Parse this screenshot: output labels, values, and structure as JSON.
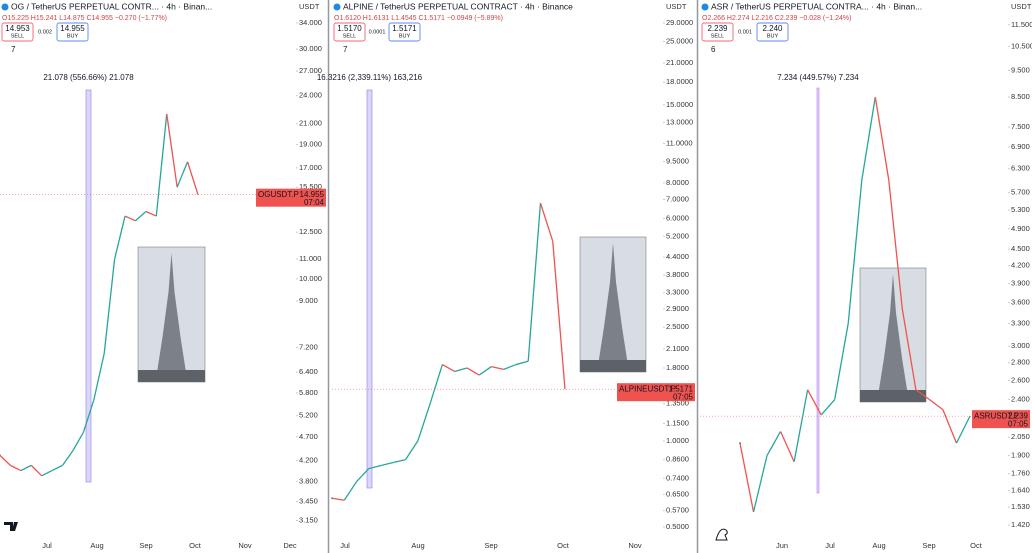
{
  "panels": [
    {
      "symbol_line": "OG / TetherUS PERPETUAL CONTR... · 4h · Binan...",
      "ohlc": "O15.225 H15.241 L14.875 C14.955 −0.270 (−1.77%)",
      "sell_price": "14.953",
      "sell_label": "SELL",
      "spread": "0.002",
      "buy_price": "14.955",
      "buy_label": "BUY",
      "indicators": "7",
      "axis_unit": "USDT",
      "measure": "21.078 (556.66%) 21.078",
      "tag_symbol": "OGUSDT.P",
      "tag_price": "14.955",
      "tag_time": "07:04",
      "log_scale": true,
      "ylim": [
        2.87,
        34.8
      ],
      "yticks": [
        {
          "value": 34,
          "label": "34.000"
        },
        {
          "value": 30,
          "label": "30.000"
        },
        {
          "value": 27,
          "label": "27.000"
        },
        {
          "value": 24,
          "label": "24.000"
        },
        {
          "value": 21,
          "label": "21.000"
        },
        {
          "value": 19,
          "label": "19.000"
        },
        {
          "value": 17,
          "label": "17.000"
        },
        {
          "value": 15.5,
          "label": "15.500"
        },
        {
          "value": 12.5,
          "label": "12.500"
        },
        {
          "value": 11,
          "label": "11.000"
        },
        {
          "value": 10,
          "label": "10.000"
        },
        {
          "value": 9,
          "label": "9.000"
        },
        {
          "value": 7.2,
          "label": "7.200"
        },
        {
          "value": 6.4,
          "label": "6.400"
        },
        {
          "value": 5.8,
          "label": "5.800"
        },
        {
          "value": 5.2,
          "label": "5.200"
        },
        {
          "value": 4.7,
          "label": "4.700"
        },
        {
          "value": 4.2,
          "label": "4.200"
        },
        {
          "value": 3.8,
          "label": "3.800"
        },
        {
          "value": 3.45,
          "label": "3.450"
        },
        {
          "value": 3.15,
          "label": "3.150"
        }
      ],
      "time_labels": [
        "Jul",
        "Aug",
        "Sep",
        "Oct",
        "Nov",
        "Dec"
      ],
      "prices": [
        4.3,
        4.1,
        4.0,
        4.1,
        3.9,
        4.0,
        4.1,
        4.4,
        4.8,
        5.6,
        7.0,
        11.0,
        13.5,
        13.2,
        13.8,
        13.5,
        22.0,
        15.5,
        17.5,
        14.955
      ]
    },
    {
      "symbol_line": "ALPINE / TetherUS PERPETUAL CONTRACT · 4h · Binance",
      "ohlc": "O1.6120 H1.6131 L1.4545 C1.5171 −0.0949 (−5.89%)",
      "sell_price": "1.5170",
      "sell_label": "SELL",
      "spread": "0.0001",
      "buy_price": "1.5171",
      "buy_label": "BUY",
      "indicators": "7",
      "axis_unit": "USDT",
      "measure": "16.3216 (2,339.11%) 163,216",
      "tag_symbol": "ALPINEUSDT.P",
      "tag_price": "1.5171",
      "tag_time": "07:05",
      "log_scale": true,
      "ylim": [
        0.45,
        30.2
      ],
      "yticks": [
        {
          "value": 29,
          "label": "29.0000"
        },
        {
          "value": 25,
          "label": "25.0000"
        },
        {
          "value": 21,
          "label": "21.0000"
        },
        {
          "value": 18,
          "label": "18.0000"
        },
        {
          "value": 15,
          "label": "15.0000"
        },
        {
          "value": 13,
          "label": "13.0000"
        },
        {
          "value": 11,
          "label": "11.0000"
        },
        {
          "value": 9.5,
          "label": "9.5000"
        },
        {
          "value": 8,
          "label": "8.0000"
        },
        {
          "value": 7,
          "label": "7.0000"
        },
        {
          "value": 6,
          "label": "6.0000"
        },
        {
          "value": 5.2,
          "label": "5.2000"
        },
        {
          "value": 4.4,
          "label": "4.4000"
        },
        {
          "value": 3.8,
          "label": "3.8000"
        },
        {
          "value": 3.3,
          "label": "3.3000"
        },
        {
          "value": 2.9,
          "label": "2.9000"
        },
        {
          "value": 2.5,
          "label": "2.5000"
        },
        {
          "value": 2.1,
          "label": "2.1000"
        },
        {
          "value": 1.8,
          "label": "1.8000"
        },
        {
          "value": 1.35,
          "label": "1.3500"
        },
        {
          "value": 1.15,
          "label": "1.1500"
        },
        {
          "value": 1,
          "label": "1.0000"
        },
        {
          "value": 0.86,
          "label": "0.8600"
        },
        {
          "value": 0.74,
          "label": "0.7400"
        },
        {
          "value": 0.65,
          "label": "0.6500"
        },
        {
          "value": 0.57,
          "label": "0.5700"
        },
        {
          "value": 0.5,
          "label": "0.5000"
        }
      ],
      "time_labels": [
        "Jul",
        "Aug",
        "Sep",
        "Oct",
        "Nov"
      ],
      "prices": [
        0.63,
        0.62,
        0.72,
        0.8,
        0.82,
        0.84,
        0.86,
        1.0,
        1.35,
        1.85,
        1.75,
        1.8,
        1.7,
        1.82,
        1.78,
        1.85,
        1.9,
        6.8,
        5.0,
        1.5171
      ]
    },
    {
      "symbol_line": "ASR / TetherUS PERPETUAL CONTRA... · 4h · Binan...",
      "ohlc": "O2.266 H2.274 L2.216 C2.239 −0.028 (−1.24%)",
      "sell_price": "2.239",
      "sell_label": "SELL",
      "spread": "0.001",
      "buy_price": "2.240",
      "buy_label": "BUY",
      "indicators": "6",
      "axis_unit": "USDT",
      "measure": "7.234 (449.57%) 7.234",
      "tag_symbol": "ASRUSDT.P",
      "tag_price": "2.239",
      "tag_time": "07:05",
      "log_scale": true,
      "ylim": [
        1.334,
        11.83
      ],
      "yticks": [
        {
          "value": 11.5,
          "label": "11.500"
        },
        {
          "value": 10.5,
          "label": "10.500"
        },
        {
          "value": 9.5,
          "label": "9.500"
        },
        {
          "value": 8.5,
          "label": "8.500"
        },
        {
          "value": 7.5,
          "label": "7.500"
        },
        {
          "value": 6.9,
          "label": "6.900"
        },
        {
          "value": 6.3,
          "label": "6.300"
        },
        {
          "value": 5.7,
          "label": "5.700"
        },
        {
          "value": 5.3,
          "label": "5.300"
        },
        {
          "value": 4.9,
          "label": "4.900"
        },
        {
          "value": 4.5,
          "label": "4.500"
        },
        {
          "value": 4.2,
          "label": "4.200"
        },
        {
          "value": 3.9,
          "label": "3.900"
        },
        {
          "value": 3.6,
          "label": "3.600"
        },
        {
          "value": 3.3,
          "label": "3.300"
        },
        {
          "value": 3,
          "label": "3.000"
        },
        {
          "value": 2.8,
          "label": "2.800"
        },
        {
          "value": 2.6,
          "label": "2.600"
        },
        {
          "value": 2.4,
          "label": "2.400"
        },
        {
          "value": 2.05,
          "label": "2.050"
        },
        {
          "value": 1.9,
          "label": "1.900"
        },
        {
          "value": 1.76,
          "label": "1.760"
        },
        {
          "value": 1.64,
          "label": "1.640"
        },
        {
          "value": 1.53,
          "label": "1.530"
        },
        {
          "value": 1.42,
          "label": "1.420"
        }
      ],
      "time_labels": [
        "Jun",
        "Jul",
        "Aug",
        "Sep",
        "Oct"
      ],
      "prices": [
        2.0,
        1.5,
        1.9,
        2.1,
        1.85,
        2.5,
        2.25,
        2.4,
        3.3,
        6.0,
        8.5,
        6.0,
        3.5,
        2.5,
        2.4,
        2.3,
        2.0,
        2.239
      ]
    }
  ]
}
